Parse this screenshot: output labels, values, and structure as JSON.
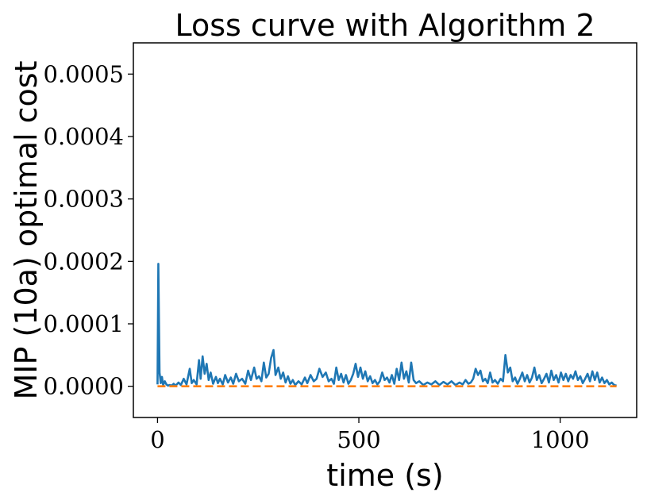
{
  "chart_data": {
    "type": "line",
    "title": "Loss curve with Algorithm 2",
    "xlabel": "time (s)",
    "ylabel": "MIP (10a) optimal cost",
    "xlim": [
      -60,
      1190
    ],
    "ylim": [
      -5e-05,
      0.00055
    ],
    "x_ticks": [
      0,
      500,
      1000
    ],
    "x_tick_labels": [
      "0",
      "500",
      "1000"
    ],
    "y_ticks": [
      0,
      0.0001,
      0.0002,
      0.0003,
      0.0004,
      0.0005
    ],
    "y_tick_labels": [
      "0.0000",
      "0.0001",
      "0.0002",
      "0.0003",
      "0.0004",
      "0.0005"
    ],
    "grid": false,
    "colors": {
      "series_0": "#1f77b4",
      "series_1": "#ff7f0e"
    },
    "series": [
      {
        "style": "solid",
        "x": [
          0,
          2,
          5,
          8,
          11,
          14,
          18,
          22,
          26,
          30,
          35,
          40,
          45,
          52,
          58,
          65,
          72,
          80,
          85,
          90,
          97,
          103,
          107,
          112,
          117,
          122,
          127,
          132,
          138,
          145,
          150,
          155,
          162,
          168,
          175,
          182,
          188,
          195,
          202,
          210,
          218,
          225,
          232,
          240,
          246,
          252,
          258,
          264,
          270,
          276,
          282,
          288,
          293,
          300,
          306,
          312,
          318,
          324,
          330,
          336,
          342,
          350,
          358,
          366,
          372,
          380,
          388,
          395,
          402,
          410,
          418,
          425,
          432,
          438,
          444,
          450,
          456,
          462,
          468,
          474,
          480,
          486,
          492,
          498,
          504,
          510,
          516,
          522,
          528,
          534,
          540,
          546,
          552,
          558,
          564,
          570,
          576,
          582,
          588,
          594,
          600,
          606,
          612,
          618,
          624,
          630,
          636,
          642,
          650,
          660,
          670,
          680,
          690,
          700,
          710,
          720,
          730,
          740,
          750,
          758,
          765,
          772,
          778,
          784,
          790,
          796,
          802,
          808,
          814,
          820,
          826,
          832,
          838,
          845,
          852,
          858,
          864,
          870,
          876,
          882,
          888,
          894,
          900,
          906,
          912,
          918,
          924,
          930,
          936,
          942,
          948,
          954,
          960,
          966,
          972,
          978,
          984,
          990,
          996,
          1002,
          1008,
          1014,
          1020,
          1026,
          1032,
          1038,
          1044,
          1050,
          1056,
          1062,
          1068,
          1074,
          1080,
          1086,
          1092,
          1098,
          1104,
          1110,
          1116,
          1122,
          1128,
          1134,
          1140
        ],
        "y": [
          3e-06,
          0.000196,
          2.2e-05,
          5e-06,
          1.5e-05,
          2e-06,
          8e-06,
          3e-06,
          1e-06,
          2e-06,
          1e-06,
          4e-06,
          1e-06,
          6e-06,
          2e-06,
          1.2e-05,
          3e-06,
          2.8e-05,
          5e-06,
          1e-05,
          3e-06,
          4.2e-05,
          1.2e-05,
          4.8e-05,
          2e-05,
          3.6e-05,
          1e-05,
          2.2e-05,
          4e-06,
          1.5e-05,
          5e-06,
          1.2e-05,
          3e-06,
          1.8e-05,
          6e-06,
          1.4e-05,
          4e-06,
          2e-05,
          8e-06,
          1.2e-05,
          4e-06,
          2.5e-05,
          1e-05,
          3e-05,
          1.2e-05,
          1.6e-05,
          8e-06,
          3.8e-05,
          1.4e-05,
          2e-05,
          4.5e-05,
          5.8e-05,
          1.8e-05,
          3e-05,
          1.2e-05,
          2.2e-05,
          6e-06,
          1.6e-05,
          4e-06,
          1e-05,
          2e-06,
          8e-06,
          3e-06,
          1.4e-05,
          5e-06,
          1.8e-05,
          8e-06,
          1.2e-05,
          2.8e-05,
          1.5e-05,
          2.2e-05,
          8e-06,
          1.2e-05,
          4e-06,
          3e-05,
          1e-05,
          2e-05,
          6e-06,
          1.8e-05,
          4e-06,
          1e-05,
          2e-05,
          3.6e-05,
          1.5e-05,
          3e-05,
          1.2e-05,
          2.4e-05,
          8e-06,
          1.6e-05,
          5e-06,
          1e-05,
          3e-06,
          8e-06,
          2.2e-05,
          1e-05,
          1.4e-05,
          6e-06,
          1.8e-05,
          4e-06,
          2.8e-05,
          1e-05,
          3.8e-05,
          1.2e-05,
          2.4e-05,
          6e-06,
          3.8e-05,
          1e-05,
          5e-06,
          8e-06,
          2e-06,
          6e-06,
          3e-06,
          8e-06,
          2e-06,
          7e-06,
          3e-06,
          8e-06,
          2e-06,
          6e-06,
          3e-06,
          1e-05,
          4e-06,
          6e-06,
          1.2e-05,
          2.8e-05,
          1.8e-05,
          2.5e-05,
          8e-06,
          1.2e-05,
          5e-06,
          2.2e-05,
          6e-06,
          1e-05,
          4e-06,
          1.2e-05,
          8e-06,
          5e-05,
          2.2e-05,
          3e-05,
          8e-06,
          1.4e-05,
          4e-06,
          1.2e-05,
          2.2e-05,
          8e-06,
          1.8e-05,
          6e-06,
          1.4e-05,
          3e-05,
          1e-05,
          1.8e-05,
          5e-06,
          1.2e-05,
          2e-05,
          6e-06,
          2.5e-05,
          1e-05,
          1.8e-05,
          6e-06,
          2.2e-05,
          1e-05,
          2e-05,
          8e-06,
          1.8e-05,
          1.2e-05,
          2.4e-05,
          1e-05,
          1.6e-05,
          5e-06,
          1.2e-05,
          2e-05,
          8e-06,
          2.4e-05,
          1e-05,
          2.2e-05,
          6e-06,
          1.4e-05,
          5e-06,
          1e-05,
          3e-06,
          6e-06,
          2e-06,
          1e-06
        ]
      },
      {
        "style": "dashed",
        "x": [
          0,
          1140
        ],
        "y": [
          0,
          0
        ]
      }
    ]
  }
}
